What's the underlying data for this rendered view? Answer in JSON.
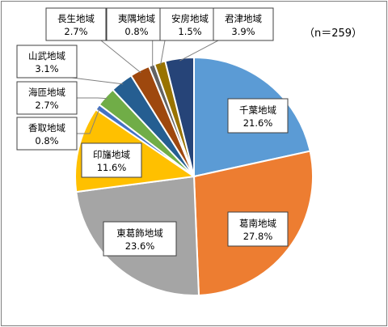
{
  "chart_data": {
    "type": "pie",
    "title": "",
    "note": "（n＝259）",
    "slices": [
      {
        "label": "千葉地域",
        "value": 21.6,
        "value_label": "21.6%",
        "color": "#5b9bd5"
      },
      {
        "label": "葛南地域",
        "value": 27.8,
        "value_label": "27.8%",
        "color": "#ed7d31"
      },
      {
        "label": "東葛飾地域",
        "value": 23.6,
        "value_label": "23.6%",
        "color": "#a5a5a5"
      },
      {
        "label": "印旛地域",
        "value": 11.6,
        "value_label": "11.6%",
        "color": "#ffc000"
      },
      {
        "label": "香取地域",
        "value": 0.8,
        "value_label": "0.8%",
        "color": "#4472c4"
      },
      {
        "label": "海匝地域",
        "value": 2.7,
        "value_label": "2.7%",
        "color": "#70ad47"
      },
      {
        "label": "山武地域",
        "value": 3.1,
        "value_label": "3.1%",
        "color": "#255e91"
      },
      {
        "label": "長生地域",
        "value": 2.7,
        "value_label": "2.7%",
        "color": "#9e480e"
      },
      {
        "label": "夷隅地域",
        "value": 0.8,
        "value_label": "0.8%",
        "color": "#636363"
      },
      {
        "label": "安房地域",
        "value": 1.5,
        "value_label": "1.5%",
        "color": "#997300"
      },
      {
        "label": "君津地域",
        "value": 3.9,
        "value_label": "3.9%",
        "color": "#264478"
      }
    ]
  }
}
